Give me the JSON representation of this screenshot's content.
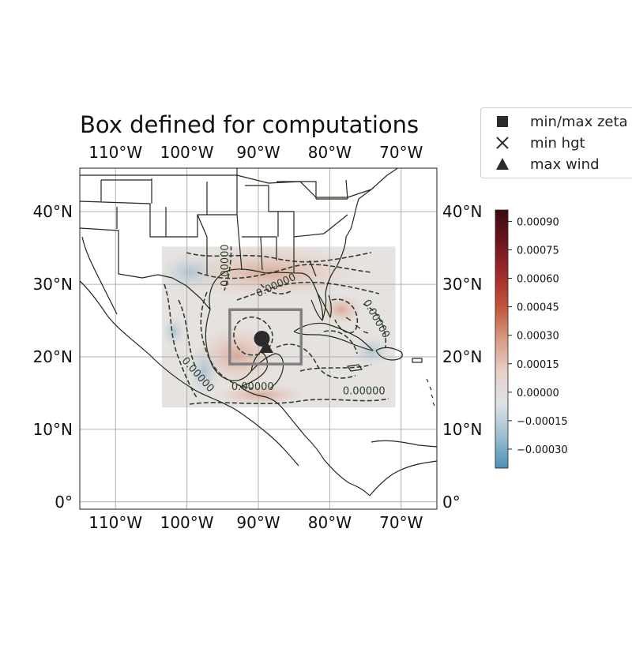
{
  "title": "Box defined for computations",
  "map": {
    "lon_range": [
      -115,
      -65
    ],
    "lat_range": [
      -1,
      46
    ],
    "lon_ticks": [
      {
        "value": -110,
        "label": "110°W"
      },
      {
        "value": -100,
        "label": "100°W"
      },
      {
        "value": -90,
        "label": "90°W"
      },
      {
        "value": -80,
        "label": "80°W"
      },
      {
        "value": -70,
        "label": "70°W"
      }
    ],
    "lat_ticks": [
      {
        "value": 0,
        "label": "0°"
      },
      {
        "value": 10,
        "label": "10°N"
      },
      {
        "value": 20,
        "label": "20°N"
      },
      {
        "value": 30,
        "label": "30°N"
      },
      {
        "value": 40,
        "label": "40°N"
      }
    ],
    "gridlines": true,
    "data_domain": {
      "lon": [
        -103.5,
        -70.8
      ],
      "lat": [
        13,
        35.2
      ]
    },
    "computation_box": {
      "lon": [
        -94,
        -84
      ],
      "lat": [
        19,
        26.5
      ]
    },
    "contour_labels": [
      {
        "text": "0.00000",
        "lon": -94.6,
        "lat": 32.6,
        "angle": -90
      },
      {
        "text": "0.00000",
        "lon": -87.5,
        "lat": 29.8,
        "angle": -25
      },
      {
        "text": "0.00000",
        "lon": -73.5,
        "lat": 25.2,
        "angle": 60
      },
      {
        "text": "0.00000",
        "lon": -98.5,
        "lat": 17.5,
        "angle": 48
      },
      {
        "text": "0.00000",
        "lon": -90.8,
        "lat": 15.8,
        "angle": 0
      },
      {
        "text": "0.00000",
        "lon": -75.2,
        "lat": 15.2,
        "angle": 0
      }
    ],
    "markers": {
      "min_max_zeta": {
        "lon": -89.5,
        "lat": 22.5
      },
      "min_hgt": {
        "lon": -89.4,
        "lat": 22.4
      },
      "max_wind": {
        "lon": -88.9,
        "lat": 21.2
      }
    }
  },
  "colorbar": {
    "min": -0.0004,
    "max": 0.00096,
    "ticks": [
      {
        "value": -0.0003,
        "label": "−0.00030"
      },
      {
        "value": -0.00015,
        "label": "−0.00015"
      },
      {
        "value": 0.0,
        "label": "0.00000"
      },
      {
        "value": 0.00015,
        "label": "0.00015"
      },
      {
        "value": 0.0003,
        "label": "0.00030"
      },
      {
        "value": 0.00045,
        "label": "0.00045"
      },
      {
        "value": 0.0006,
        "label": "0.00060"
      },
      {
        "value": 0.00075,
        "label": "0.00075"
      },
      {
        "value": 0.0009,
        "label": "0.00090"
      }
    ],
    "colors": [
      "#4a8fb8",
      "#9cc0d3",
      "#dde2e5",
      "#e7cfc5",
      "#d79a83",
      "#c0563d",
      "#a32a2c",
      "#6e1520",
      "#3a0c12"
    ]
  },
  "legend": {
    "items": [
      {
        "marker": "square",
        "label": "min/max zeta"
      },
      {
        "marker": "x",
        "label": "min hgt"
      },
      {
        "marker": "triangle",
        "label": "max wind"
      }
    ]
  },
  "colors": {
    "coast": "#1f2a18",
    "contour": "#2d3f32",
    "grid": "#b0b0b0",
    "box": "#808080",
    "marker": "#2b2b2b"
  }
}
